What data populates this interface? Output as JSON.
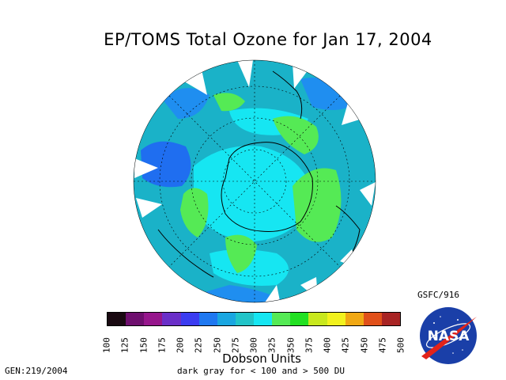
{
  "title": "EP/TOMS Total Ozone for Jan 17, 2004",
  "colorbar": {
    "ticks": [
      "100",
      "125",
      "150",
      "175",
      "200",
      "225",
      "250",
      "275",
      "300",
      "325",
      "350",
      "375",
      "400",
      "425",
      "450",
      "475",
      "500"
    ],
    "colors": [
      "#1a0a12",
      "#6e0f6e",
      "#96168c",
      "#6a2fc8",
      "#3b3cf0",
      "#1f78f0",
      "#1aa6e0",
      "#22c4c8",
      "#16e6f2",
      "#55ea55",
      "#22e022",
      "#c8e81e",
      "#f2f21e",
      "#f0a814",
      "#e0501a",
      "#a82424",
      "#4a1010"
    ]
  },
  "units_label": "Dobson Units",
  "note": "dark gray for < 100 and > 500 DU",
  "gen_label": "GEN:219/2004",
  "source_label": "GSFC/916",
  "logo": {
    "text": "NASA",
    "icon": "nasa-meatball-icon",
    "colors": {
      "blue": "#1a3fa8",
      "red": "#e2231a"
    }
  }
}
